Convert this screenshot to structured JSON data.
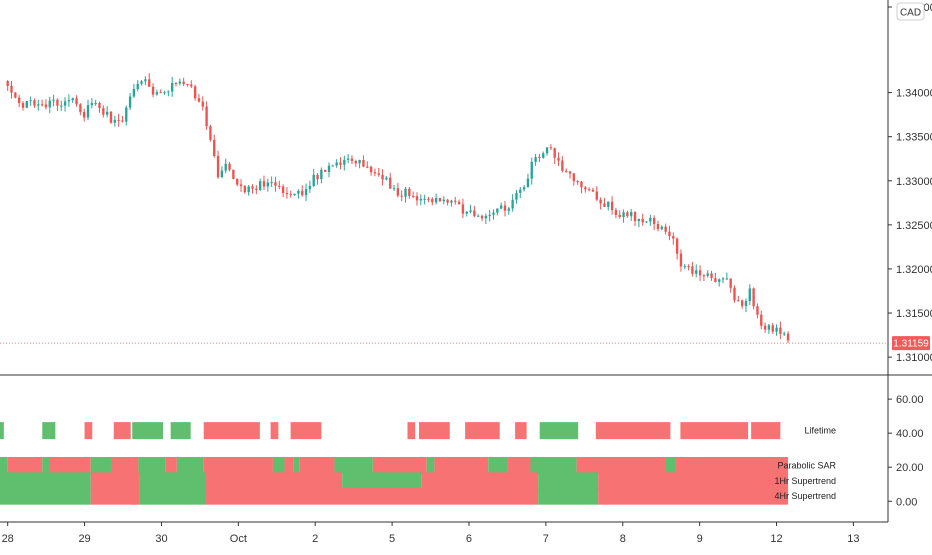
{
  "chart_data": {
    "type": "candlestick",
    "instrument": "CAD",
    "last_price": "1.31159",
    "price_axis": {
      "range": [
        1.3082,
        1.3505
      ],
      "ticks": [
        {
          "value": 1.31,
          "label": "1.31000"
        },
        {
          "value": 1.315,
          "label": "1.31500"
        },
        {
          "value": 1.32,
          "label": "1.32000"
        },
        {
          "value": 1.325,
          "label": "1.32500"
        },
        {
          "value": 1.33,
          "label": "1.33000"
        },
        {
          "value": 1.335,
          "label": "1.33500"
        },
        {
          "value": 1.34,
          "label": "1.34000"
        }
      ],
      "partial_top_label": "1.34500"
    },
    "indicator_axis": {
      "range": [
        -11,
        73
      ],
      "ticks": [
        {
          "value": 60,
          "label": "60.00"
        },
        {
          "value": 40,
          "label": "40.00"
        },
        {
          "value": 20,
          "label": "20.00"
        },
        {
          "value": 0,
          "label": "0.00"
        }
      ]
    },
    "x_axis": {
      "range": [
        -0.1,
        11.45
      ],
      "ticks": [
        {
          "value": 0,
          "label": "28"
        },
        {
          "value": 1,
          "label": "29"
        },
        {
          "value": 2,
          "label": "30"
        },
        {
          "value": 3,
          "label": "Oct"
        },
        {
          "value": 4,
          "label": "2"
        },
        {
          "value": 5,
          "label": "5"
        },
        {
          "value": 6,
          "label": "6"
        },
        {
          "value": 7,
          "label": "7"
        },
        {
          "value": 8,
          "label": "8"
        },
        {
          "value": 9,
          "label": "9"
        },
        {
          "value": 10,
          "label": "12"
        },
        {
          "value": 11,
          "label": "13"
        }
      ]
    },
    "price_path": [
      [
        0,
        1.3413
      ],
      [
        0.1,
        1.3395
      ],
      [
        0.2,
        1.3383
      ],
      [
        0.3,
        1.3392
      ],
      [
        0.45,
        1.3382
      ],
      [
        0.55,
        1.3392
      ],
      [
        0.7,
        1.3385
      ],
      [
        0.85,
        1.3396
      ],
      [
        1.0,
        1.3375
      ],
      [
        1.1,
        1.339
      ],
      [
        1.25,
        1.3378
      ],
      [
        1.4,
        1.3365
      ],
      [
        1.5,
        1.3372
      ],
      [
        1.6,
        1.3395
      ],
      [
        1.75,
        1.3418
      ],
      [
        1.9,
        1.3395
      ],
      [
        2.05,
        1.3398
      ],
      [
        2.2,
        1.3413
      ],
      [
        2.3,
        1.3412
      ],
      [
        2.4,
        1.3402
      ],
      [
        2.5,
        1.3392
      ],
      [
        2.6,
        1.3362
      ],
      [
        2.65,
        1.3345
      ],
      [
        2.73,
        1.3308
      ],
      [
        2.85,
        1.3315
      ],
      [
        3.0,
        1.3298
      ],
      [
        3.1,
        1.329
      ],
      [
        3.3,
        1.3295
      ],
      [
        3.5,
        1.3298
      ],
      [
        3.55,
        1.329
      ],
      [
        3.8,
        1.3285
      ],
      [
        3.9,
        1.3298
      ],
      [
        4.1,
        1.3308
      ],
      [
        4.3,
        1.3318
      ],
      [
        4.5,
        1.3322
      ],
      [
        4.7,
        1.3312
      ],
      [
        4.9,
        1.3305
      ],
      [
        5.0,
        1.329
      ],
      [
        5.2,
        1.3285
      ],
      [
        5.4,
        1.3282
      ],
      [
        5.6,
        1.328
      ],
      [
        5.8,
        1.3272
      ],
      [
        6.0,
        1.3264
      ],
      [
        6.15,
        1.3258
      ],
      [
        6.3,
        1.3266
      ],
      [
        6.5,
        1.3272
      ],
      [
        6.7,
        1.3288
      ],
      [
        6.8,
        1.3315
      ],
      [
        6.9,
        1.3325
      ],
      [
        7.0,
        1.3335
      ],
      [
        7.05,
        1.3338
      ],
      [
        7.2,
        1.3318
      ],
      [
        7.4,
        1.3298
      ],
      [
        7.5,
        1.329
      ],
      [
        7.7,
        1.328
      ],
      [
        7.9,
        1.3265
      ],
      [
        8.0,
        1.3262
      ],
      [
        8.1,
        1.326
      ],
      [
        8.25,
        1.3258
      ],
      [
        8.4,
        1.3252
      ],
      [
        8.55,
        1.3245
      ],
      [
        8.65,
        1.3232
      ],
      [
        8.7,
        1.3215
      ],
      [
        8.8,
        1.3203
      ],
      [
        9.0,
        1.3195
      ],
      [
        9.2,
        1.3188
      ],
      [
        9.35,
        1.3185
      ],
      [
        9.45,
        1.3168
      ],
      [
        9.55,
        1.3162
      ],
      [
        9.65,
        1.3175
      ],
      [
        9.75,
        1.3148
      ],
      [
        9.85,
        1.3132
      ],
      [
        9.95,
        1.313
      ],
      [
        10.05,
        1.3128
      ],
      [
        10.15,
        1.3119
      ]
    ],
    "bands": [
      {
        "name": "Lifetime",
        "label": "Lifetime",
        "y": 41.5,
        "segments": [
          {
            "start": -0.1,
            "end": -0.05,
            "state": "green"
          },
          {
            "start": 0.45,
            "end": 0.62,
            "state": "green"
          },
          {
            "start": 1.0,
            "end": 1.1,
            "state": "red"
          },
          {
            "start": 1.38,
            "end": 1.6,
            "state": "red"
          },
          {
            "start": 1.62,
            "end": 2.02,
            "state": "green"
          },
          {
            "start": 2.12,
            "end": 2.38,
            "state": "green"
          },
          {
            "start": 2.55,
            "end": 3.28,
            "state": "red"
          },
          {
            "start": 3.42,
            "end": 3.52,
            "state": "red"
          },
          {
            "start": 3.68,
            "end": 4.08,
            "state": "red"
          },
          {
            "start": 5.2,
            "end": 5.3,
            "state": "red"
          },
          {
            "start": 5.35,
            "end": 5.75,
            "state": "red"
          },
          {
            "start": 5.95,
            "end": 6.4,
            "state": "red"
          },
          {
            "start": 6.6,
            "end": 6.75,
            "state": "red"
          },
          {
            "start": 6.92,
            "end": 7.42,
            "state": "green"
          },
          {
            "start": 7.65,
            "end": 8.62,
            "state": "red"
          },
          {
            "start": 8.75,
            "end": 9.63,
            "state": "red"
          },
          {
            "start": 9.67,
            "end": 10.05,
            "state": "red"
          }
        ]
      },
      {
        "name": "Parabolic SAR",
        "label": "Parabolic SAR",
        "y": 21,
        "segments": [
          {
            "start": -0.1,
            "end": 0.0,
            "state": "green"
          },
          {
            "start": 0.0,
            "end": 0.45,
            "state": "red"
          },
          {
            "start": 0.45,
            "end": 0.55,
            "state": "green"
          },
          {
            "start": 0.55,
            "end": 1.08,
            "state": "red"
          },
          {
            "start": 1.08,
            "end": 1.35,
            "state": "green"
          },
          {
            "start": 1.35,
            "end": 1.7,
            "state": "red"
          },
          {
            "start": 1.7,
            "end": 2.05,
            "state": "green"
          },
          {
            "start": 2.05,
            "end": 2.2,
            "state": "red"
          },
          {
            "start": 2.2,
            "end": 2.55,
            "state": "green"
          },
          {
            "start": 2.55,
            "end": 3.45,
            "state": "red"
          },
          {
            "start": 3.45,
            "end": 3.6,
            "state": "green"
          },
          {
            "start": 3.6,
            "end": 3.72,
            "state": "red"
          },
          {
            "start": 3.72,
            "end": 3.8,
            "state": "green"
          },
          {
            "start": 3.8,
            "end": 4.25,
            "state": "red"
          },
          {
            "start": 4.25,
            "end": 4.75,
            "state": "green"
          },
          {
            "start": 4.75,
            "end": 5.45,
            "state": "red"
          },
          {
            "start": 5.45,
            "end": 5.55,
            "state": "green"
          },
          {
            "start": 5.55,
            "end": 6.25,
            "state": "red"
          },
          {
            "start": 6.25,
            "end": 6.5,
            "state": "green"
          },
          {
            "start": 6.5,
            "end": 6.8,
            "state": "red"
          },
          {
            "start": 6.8,
            "end": 7.4,
            "state": "green"
          },
          {
            "start": 7.4,
            "end": 8.55,
            "state": "red"
          },
          {
            "start": 8.55,
            "end": 8.68,
            "state": "green"
          },
          {
            "start": 8.68,
            "end": 10.15,
            "state": "red"
          }
        ]
      },
      {
        "name": "1Hr Supertrend",
        "label": "1Hr Supertrend",
        "y": 12,
        "segments": [
          {
            "start": -0.1,
            "end": 1.08,
            "state": "green"
          },
          {
            "start": 1.08,
            "end": 1.72,
            "state": "red"
          },
          {
            "start": 1.72,
            "end": 2.58,
            "state": "green"
          },
          {
            "start": 2.58,
            "end": 4.35,
            "state": "red"
          },
          {
            "start": 4.35,
            "end": 5.38,
            "state": "green"
          },
          {
            "start": 5.38,
            "end": 6.9,
            "state": "red"
          },
          {
            "start": 6.9,
            "end": 7.68,
            "state": "green"
          },
          {
            "start": 7.68,
            "end": 10.15,
            "state": "red"
          }
        ]
      },
      {
        "name": "4Hr Supertrend",
        "label": "4Hr Supertrend",
        "y": 3,
        "segments": [
          {
            "start": -0.1,
            "end": 1.08,
            "state": "green"
          },
          {
            "start": 1.08,
            "end": 1.72,
            "state": "red"
          },
          {
            "start": 1.72,
            "end": 2.58,
            "state": "green"
          },
          {
            "start": 2.58,
            "end": 6.9,
            "state": "red"
          },
          {
            "start": 6.9,
            "end": 7.68,
            "state": "green"
          },
          {
            "start": 7.68,
            "end": 10.15,
            "state": "red"
          }
        ]
      }
    ],
    "colors": {
      "up": "#26a69a",
      "down": "#ef5350",
      "band_red": "#f77272",
      "band_green": "#5fbf6e",
      "price_tag": "#f05a5a",
      "axis": "#333333",
      "grid": "#e6e6e6"
    }
  }
}
